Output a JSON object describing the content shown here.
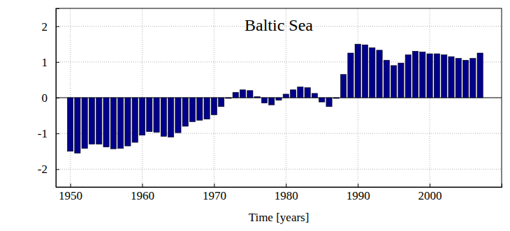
{
  "chart_data": {
    "type": "bar",
    "title": "Baltic Sea",
    "x_label": "Time [years]",
    "x": [
      1950,
      1951,
      1952,
      1953,
      1954,
      1955,
      1956,
      1957,
      1958,
      1959,
      1960,
      1961,
      1962,
      1963,
      1964,
      1965,
      1966,
      1967,
      1968,
      1969,
      1970,
      1971,
      1972,
      1973,
      1974,
      1975,
      1976,
      1977,
      1978,
      1979,
      1980,
      1981,
      1982,
      1983,
      1984,
      1985,
      1986,
      1987,
      1988,
      1989,
      1990,
      1991,
      1992,
      1993,
      1994,
      1995,
      1996,
      1997,
      1998,
      1999,
      2000,
      2001,
      2002,
      2003,
      2004,
      2005,
      2006,
      2007
    ],
    "values": [
      -1.5,
      -1.55,
      -1.42,
      -1.3,
      -1.3,
      -1.38,
      -1.43,
      -1.42,
      -1.35,
      -1.25,
      -1.05,
      -0.95,
      -0.97,
      -1.08,
      -1.1,
      -0.98,
      -0.8,
      -0.67,
      -0.63,
      -0.6,
      -0.48,
      -0.25,
      -0.02,
      0.15,
      0.22,
      0.2,
      0.03,
      -0.15,
      -0.2,
      -0.07,
      0.1,
      0.22,
      0.3,
      0.28,
      0.12,
      -0.12,
      -0.25,
      -0.02,
      0.65,
      1.25,
      1.5,
      1.48,
      1.4,
      1.33,
      1.05,
      0.9,
      0.97,
      1.2,
      1.3,
      1.28,
      1.23,
      1.23,
      1.2,
      1.15,
      1.1,
      1.05,
      1.1,
      1.25
    ],
    "color": "#00008b",
    "xlim": [
      1948,
      2010
    ],
    "xticks": [
      1950,
      1960,
      1970,
      1980,
      1990,
      2000
    ],
    "ylim": [
      -2.5,
      2.5
    ],
    "yticks": [
      -2,
      -1,
      0,
      1,
      2
    ],
    "grid": true
  }
}
